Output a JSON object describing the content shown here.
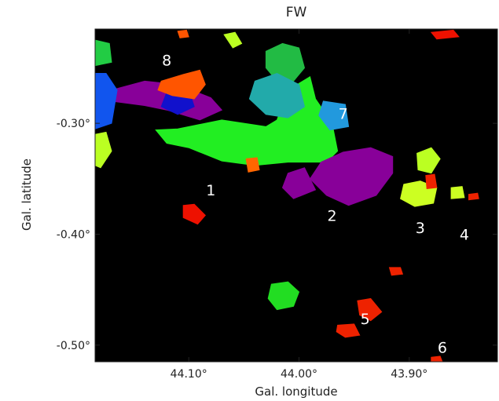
{
  "chart_data": {
    "type": "heatmap",
    "title": "FW",
    "xlabel": "Gal. longitude",
    "ylabel": "Gal. latitude",
    "xlim": [
      44.185,
      43.82
    ],
    "ylim": [
      -0.515,
      -0.215
    ],
    "background": "#000000",
    "x_ticks": [
      {
        "value": 44.1,
        "label": "44.10°"
      },
      {
        "value": 44.0,
        "label": "44.00°"
      },
      {
        "value": 43.9,
        "label": "43.90°"
      }
    ],
    "y_ticks": [
      {
        "value": -0.3,
        "label": "-0.30°"
      },
      {
        "value": -0.4,
        "label": "-0.40°"
      },
      {
        "value": -0.5,
        "label": "-0.50°"
      }
    ],
    "region_labels": [
      {
        "text": "1",
        "l": 44.08,
        "b": -0.365
      },
      {
        "text": "2",
        "l": 43.97,
        "b": -0.388
      },
      {
        "text": "3",
        "l": 43.89,
        "b": -0.399
      },
      {
        "text": "4",
        "l": 43.85,
        "b": -0.405
      },
      {
        "text": "5",
        "l": 43.94,
        "b": -0.481
      },
      {
        "text": "6",
        "l": 43.87,
        "b": -0.507
      },
      {
        "text": "7",
        "l": 43.96,
        "b": -0.296
      },
      {
        "text": "8",
        "l": 44.12,
        "b": -0.248
      }
    ],
    "clumps": [
      {
        "name": "green-main",
        "color": "#22ee22",
        "pts": [
          [
            44.11,
            -0.305
          ],
          [
            44.07,
            -0.297
          ],
          [
            44.05,
            -0.3
          ],
          [
            44.03,
            -0.303
          ],
          [
            44.02,
            -0.297
          ],
          [
            44.01,
            -0.27
          ],
          [
            43.99,
            -0.258
          ],
          [
            43.985,
            -0.278
          ],
          [
            43.97,
            -0.3
          ],
          [
            43.965,
            -0.325
          ],
          [
            43.975,
            -0.335
          ],
          [
            44.01,
            -0.335
          ],
          [
            44.04,
            -0.338
          ],
          [
            44.07,
            -0.334
          ],
          [
            44.1,
            -0.322
          ],
          [
            44.12,
            -0.318
          ],
          [
            44.13,
            -0.306
          ]
        ]
      },
      {
        "name": "green-upper",
        "color": "#22bb44",
        "pts": [
          [
            44.03,
            -0.235
          ],
          [
            44.015,
            -0.228
          ],
          [
            44.0,
            -0.232
          ],
          [
            43.995,
            -0.25
          ],
          [
            44.005,
            -0.262
          ],
          [
            44.02,
            -0.262
          ],
          [
            44.03,
            -0.25
          ]
        ]
      },
      {
        "name": "teal",
        "color": "#22aaaa",
        "pts": [
          [
            44.04,
            -0.262
          ],
          [
            44.02,
            -0.255
          ],
          [
            44.0,
            -0.265
          ],
          [
            43.995,
            -0.285
          ],
          [
            44.01,
            -0.295
          ],
          [
            44.03,
            -0.292
          ],
          [
            44.045,
            -0.278
          ]
        ]
      },
      {
        "name": "cyan-7",
        "color": "#2299dd",
        "pts": [
          [
            43.978,
            -0.28
          ],
          [
            43.958,
            -0.283
          ],
          [
            43.955,
            -0.303
          ],
          [
            43.972,
            -0.306
          ],
          [
            43.982,
            -0.293
          ]
        ]
      },
      {
        "name": "purple-2",
        "color": "#880099",
        "pts": [
          [
            43.98,
            -0.335
          ],
          [
            43.96,
            -0.326
          ],
          [
            43.935,
            -0.322
          ],
          [
            43.915,
            -0.33
          ],
          [
            43.915,
            -0.345
          ],
          [
            43.93,
            -0.365
          ],
          [
            43.955,
            -0.374
          ],
          [
            43.975,
            -0.365
          ],
          [
            43.99,
            -0.35
          ]
        ]
      },
      {
        "name": "purple-2b",
        "color": "#880099",
        "pts": [
          [
            44.01,
            -0.345
          ],
          [
            43.995,
            -0.34
          ],
          [
            43.985,
            -0.36
          ],
          [
            44.005,
            -0.368
          ],
          [
            44.015,
            -0.358
          ]
        ]
      },
      {
        "name": "purple-left",
        "color": "#880099",
        "pts": [
          [
            44.17,
            -0.27
          ],
          [
            44.14,
            -0.262
          ],
          [
            44.11,
            -0.265
          ],
          [
            44.08,
            -0.277
          ],
          [
            44.07,
            -0.288
          ],
          [
            44.09,
            -0.297
          ],
          [
            44.12,
            -0.288
          ],
          [
            44.14,
            -0.284
          ],
          [
            44.17,
            -0.28
          ]
        ]
      },
      {
        "name": "blue-edge",
        "color": "#1155ee",
        "pts": [
          [
            44.185,
            -0.255
          ],
          [
            44.175,
            -0.255
          ],
          [
            44.165,
            -0.27
          ],
          [
            44.17,
            -0.3
          ],
          [
            44.185,
            -0.305
          ]
        ]
      },
      {
        "name": "blue-mid",
        "color": "#1111cc",
        "pts": [
          [
            44.12,
            -0.272
          ],
          [
            44.1,
            -0.27
          ],
          [
            44.095,
            -0.285
          ],
          [
            44.11,
            -0.292
          ],
          [
            44.125,
            -0.285
          ]
        ]
      },
      {
        "name": "orange-8",
        "color": "#ff5500",
        "pts": [
          [
            44.125,
            -0.262
          ],
          [
            44.105,
            -0.256
          ],
          [
            44.09,
            -0.252
          ],
          [
            44.085,
            -0.265
          ],
          [
            44.095,
            -0.278
          ],
          [
            44.115,
            -0.275
          ],
          [
            44.128,
            -0.27
          ]
        ]
      },
      {
        "name": "yellow-3a",
        "color": "#bbff22",
        "pts": [
          [
            43.893,
            -0.327
          ],
          [
            43.88,
            -0.322
          ],
          [
            43.872,
            -0.332
          ],
          [
            43.88,
            -0.345
          ],
          [
            43.892,
            -0.342
          ]
        ]
      },
      {
        "name": "yellow-3b",
        "color": "#ccff22",
        "pts": [
          [
            43.905,
            -0.355
          ],
          [
            43.89,
            -0.352
          ],
          [
            43.875,
            -0.358
          ],
          [
            43.878,
            -0.372
          ],
          [
            43.895,
            -0.375
          ],
          [
            43.908,
            -0.368
          ]
        ]
      },
      {
        "name": "yellow-4",
        "color": "#ccff22",
        "pts": [
          [
            43.862,
            -0.358
          ],
          [
            43.852,
            -0.357
          ],
          [
            43.85,
            -0.367
          ],
          [
            43.862,
            -0.368
          ]
        ]
      },
      {
        "name": "yellow-left",
        "color": "#bbff22",
        "pts": [
          [
            44.185,
            -0.31
          ],
          [
            44.175,
            -0.308
          ],
          [
            44.17,
            -0.325
          ],
          [
            44.18,
            -0.34
          ],
          [
            44.185,
            -0.338
          ]
        ]
      },
      {
        "name": "yellow-top",
        "color": "#bbff22",
        "pts": [
          [
            44.068,
            -0.22
          ],
          [
            44.058,
            -0.218
          ],
          [
            44.052,
            -0.228
          ],
          [
            44.06,
            -0.232
          ]
        ]
      },
      {
        "name": "green-lower",
        "color": "#22dd22",
        "pts": [
          [
            44.025,
            -0.445
          ],
          [
            44.01,
            -0.443
          ],
          [
            44.0,
            -0.452
          ],
          [
            44.005,
            -0.465
          ],
          [
            44.02,
            -0.468
          ],
          [
            44.028,
            -0.458
          ]
        ]
      },
      {
        "name": "green-left-top",
        "color": "#22cc44",
        "pts": [
          [
            44.185,
            -0.225
          ],
          [
            44.172,
            -0.228
          ],
          [
            44.17,
            -0.245
          ],
          [
            44.185,
            -0.248
          ]
        ]
      },
      {
        "name": "red-left",
        "color": "#ee1100",
        "pts": [
          [
            44.105,
            -0.374
          ],
          [
            44.095,
            -0.373
          ],
          [
            44.085,
            -0.383
          ],
          [
            44.092,
            -0.391
          ],
          [
            44.105,
            -0.385
          ]
        ]
      },
      {
        "name": "red-5a",
        "color": "#ee2200",
        "pts": [
          [
            43.947,
            -0.46
          ],
          [
            43.935,
            -0.458
          ],
          [
            43.925,
            -0.47
          ],
          [
            43.935,
            -0.478
          ],
          [
            43.945,
            -0.473
          ]
        ]
      },
      {
        "name": "red-5b",
        "color": "#ee2200",
        "pts": [
          [
            43.965,
            -0.482
          ],
          [
            43.95,
            -0.481
          ],
          [
            43.945,
            -0.491
          ],
          [
            43.958,
            -0.493
          ],
          [
            43.966,
            -0.488
          ]
        ]
      },
      {
        "name": "red-small-5",
        "color": "#ee2200",
        "pts": [
          [
            43.918,
            -0.43
          ],
          [
            43.908,
            -0.43
          ],
          [
            43.906,
            -0.436
          ],
          [
            43.916,
            -0.437
          ]
        ]
      },
      {
        "name": "red-3",
        "color": "#ee2200",
        "pts": [
          [
            43.885,
            -0.347
          ],
          [
            43.877,
            -0.346
          ],
          [
            43.875,
            -0.358
          ],
          [
            43.884,
            -0.359
          ]
        ]
      },
      {
        "name": "red-4",
        "color": "#ee2200",
        "pts": [
          [
            43.846,
            -0.364
          ],
          [
            43.838,
            -0.363
          ],
          [
            43.837,
            -0.368
          ],
          [
            43.846,
            -0.369
          ]
        ]
      },
      {
        "name": "red-top-right",
        "color": "#ee1100",
        "pts": [
          [
            43.88,
            -0.218
          ],
          [
            43.86,
            -0.216
          ],
          [
            43.855,
            -0.222
          ],
          [
            43.875,
            -0.224
          ]
        ]
      },
      {
        "name": "red-6",
        "color": "#ee2200",
        "pts": [
          [
            43.88,
            -0.511
          ],
          [
            43.872,
            -0.51
          ],
          [
            43.87,
            -0.515
          ],
          [
            43.88,
            -0.515
          ]
        ]
      },
      {
        "name": "orange-top",
        "color": "#ff5500",
        "pts": [
          [
            44.11,
            -0.217
          ],
          [
            44.102,
            -0.216
          ],
          [
            44.1,
            -0.222
          ],
          [
            44.108,
            -0.223
          ]
        ]
      },
      {
        "name": "orange-mid",
        "color": "#ff6600",
        "pts": [
          [
            44.048,
            -0.332
          ],
          [
            44.038,
            -0.331
          ],
          [
            44.036,
            -0.342
          ],
          [
            44.046,
            -0.344
          ]
        ]
      }
    ]
  }
}
